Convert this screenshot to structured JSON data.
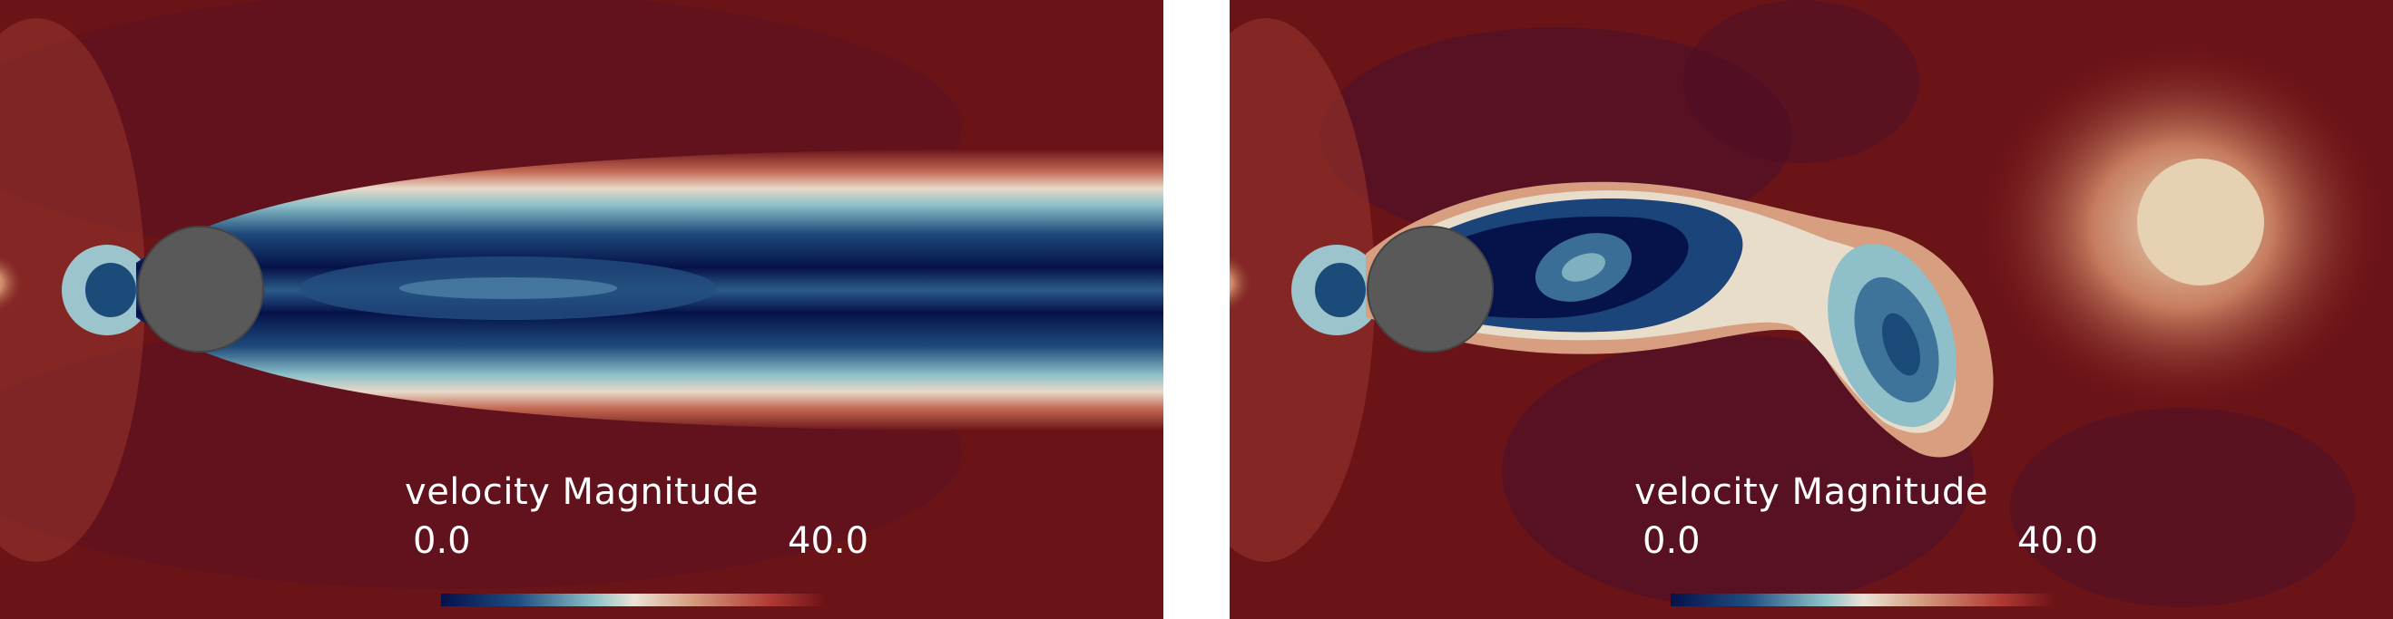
{
  "panels": [
    {
      "id": "steady",
      "legend_title": "velocity Magnitude",
      "legend_min": "0.0",
      "legend_max": "40.0"
    },
    {
      "id": "unsteady",
      "legend_title": "velocity Magnitude",
      "legend_min": "0.0",
      "legend_max": "40.0"
    }
  ],
  "colormap": {
    "low": "#05114a",
    "mid": "#e7d4bf",
    "high": "#6b1116",
    "background": "#6a1318",
    "cylinder": "#595959"
  }
}
